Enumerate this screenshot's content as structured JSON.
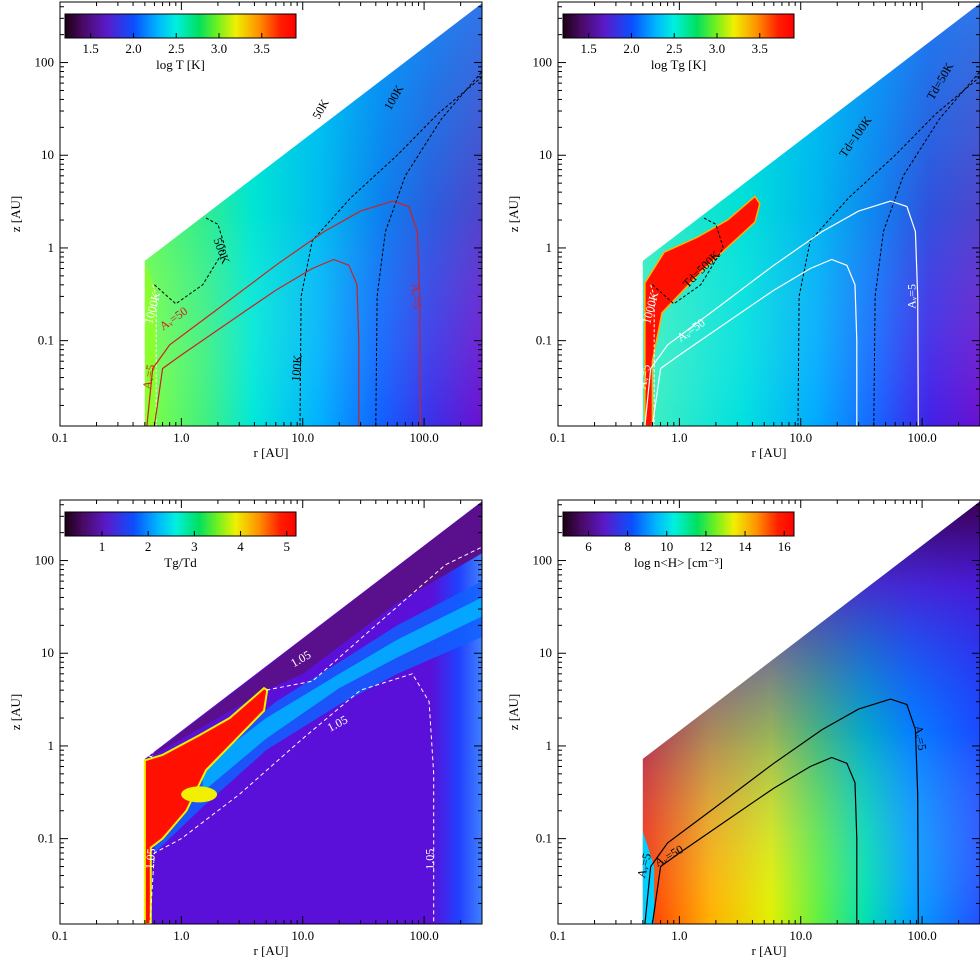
{
  "chart_data": [
    {
      "type": "heatmap",
      "panel": "top-left",
      "xlabel": "r [AU]",
      "ylabel": "z [AU]",
      "xscale": "log",
      "yscale": "log",
      "xlim": [
        0.1,
        300
      ],
      "ylim": [
        0.012,
        450
      ],
      "xticks": [
        "0.1",
        "1.0",
        "10.0",
        "100.0"
      ],
      "yticks": [
        "0.1",
        "1",
        "10",
        "100"
      ],
      "colorbar": {
        "label": "log T_d [K]",
        "ticks": [
          "1.5",
          "2.0",
          "2.5",
          "3.0",
          "3.5"
        ],
        "range": [
          1.2,
          3.9
        ],
        "placement": "top-left"
      },
      "contours": [
        {
          "label": "1000K",
          "color": "#ffffff",
          "style": "dashed"
        },
        {
          "label": "500K",
          "color": "#000000",
          "style": "dashed"
        },
        {
          "label": "100K",
          "color": "#000000",
          "style": "dashed"
        },
        {
          "label": "100K",
          "color": "#000000",
          "style": "dashed"
        },
        {
          "label": "50K",
          "color": "#000000",
          "style": "dashed"
        },
        {
          "label": "A_v=5",
          "color": "#cc2222",
          "style": "solid"
        },
        {
          "label": "A_v=50",
          "color": "#cc2222",
          "style": "solid"
        },
        {
          "label": "A_v=5",
          "color": "#cc2222",
          "style": "solid"
        }
      ]
    },
    {
      "type": "heatmap",
      "panel": "top-right",
      "xlabel": "r [AU]",
      "ylabel": "z [AU]",
      "xscale": "log",
      "yscale": "log",
      "xlim": [
        0.1,
        300
      ],
      "ylim": [
        0.012,
        450
      ],
      "xticks": [
        "0.1",
        "1.0",
        "10.0",
        "100.0"
      ],
      "yticks": [
        "0.1",
        "1",
        "10",
        "100"
      ],
      "colorbar": {
        "label": "log Tg [K]",
        "ticks": [
          "1.5",
          "2.0",
          "2.5",
          "3.0",
          "3.5"
        ],
        "range": [
          1.2,
          3.9
        ],
        "placement": "top-left"
      },
      "contours": [
        {
          "label": "1000K",
          "color": "#ffffff",
          "style": "dashed"
        },
        {
          "label": "Td=500K",
          "color": "#000000",
          "style": "dashed"
        },
        {
          "label": "Td=100K",
          "color": "#000000",
          "style": "dashed"
        },
        {
          "label": "Td=50K",
          "color": "#000000",
          "style": "dashed"
        },
        {
          "label": "A_v=5",
          "color": "#ffffff",
          "style": "solid"
        },
        {
          "label": "A_v=50",
          "color": "#ffffff",
          "style": "solid"
        },
        {
          "label": "A_v=5",
          "color": "#ffffff",
          "style": "solid"
        }
      ]
    },
    {
      "type": "heatmap",
      "panel": "bottom-left",
      "xlabel": "r [AU]",
      "ylabel": "z [AU]",
      "xscale": "log",
      "yscale": "log",
      "xlim": [
        0.1,
        300
      ],
      "ylim": [
        0.012,
        450
      ],
      "xticks": [
        "0.1",
        "1.0",
        "10.0",
        "100.0"
      ],
      "yticks": [
        "0.1",
        "1",
        "10",
        "100"
      ],
      "colorbar": {
        "label": "Tg/Td",
        "ticks": [
          "1",
          "2",
          "3",
          "4",
          "5"
        ],
        "range": [
          0.2,
          5.2
        ],
        "placement": "top-left"
      },
      "contours": [
        {
          "label": "1.05",
          "color": "#ffffff",
          "style": "dashed"
        },
        {
          "label": "1.05",
          "color": "#ffffff",
          "style": "dashed"
        },
        {
          "label": "1.05",
          "color": "#ffffff",
          "style": "dashed"
        },
        {
          "label": "1.05",
          "color": "#ffffff",
          "style": "dashed"
        },
        {
          "label": "1.05",
          "color": "#ffffff",
          "style": "dashed"
        }
      ]
    },
    {
      "type": "heatmap",
      "panel": "bottom-right",
      "xlabel": "r [AU]",
      "ylabel": "z [AU]",
      "xscale": "log",
      "yscale": "log",
      "xlim": [
        0.1,
        300
      ],
      "ylim": [
        0.012,
        450
      ],
      "xticks": [
        "0.1",
        "1.0",
        "10.0",
        "100.0"
      ],
      "yticks": [
        "0.1",
        "1",
        "10",
        "100"
      ],
      "colorbar": {
        "label": "log n<H> [cm^-3]",
        "ticks": [
          "6",
          "8",
          "10",
          "12",
          "14",
          "16"
        ],
        "range": [
          4.7,
          16.5
        ],
        "placement": "top-left"
      },
      "contours": [
        {
          "label": "A_v=5",
          "color": "#000000",
          "style": "solid"
        },
        {
          "label": "A_v=50",
          "color": "#000000",
          "style": "solid"
        },
        {
          "label": "A_v=5",
          "color": "#000000",
          "style": "solid"
        }
      ]
    }
  ]
}
